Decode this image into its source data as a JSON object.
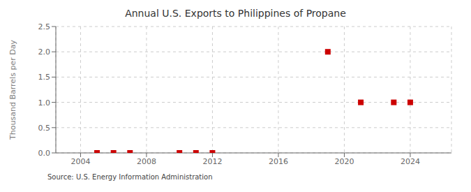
{
  "chart_data": {
    "type": "scatter",
    "title": "Annual U.S. Exports to Philippines of Propane",
    "y_label": "Thousand Barrels per Day",
    "annotations": [
      "Source: U.S. Energy Information Administration"
    ],
    "x": [
      2005,
      2006,
      2007,
      2010,
      2011,
      2012,
      2019,
      2021,
      2023,
      2024
    ],
    "values": [
      0.0,
      0.0,
      0.0,
      0.0,
      0.0,
      0.0,
      2.0,
      1.0,
      1.0,
      1.0
    ],
    "color": "#cc0000",
    "marker": "square",
    "xlim": [
      2002.5,
      2026.5
    ],
    "ylim": [
      0.0,
      2.5
    ],
    "xticks": [
      2004,
      2008,
      2012,
      2016,
      2020,
      2024
    ],
    "yticks": [
      {
        "value": 0.0,
        "label": "0.0"
      },
      0.5,
      {
        "value": 1.0,
        "label": "1.0"
      },
      1.5,
      {
        "value": 2.0,
        "label": "2.0"
      },
      2.5
    ],
    "grid": true
  }
}
